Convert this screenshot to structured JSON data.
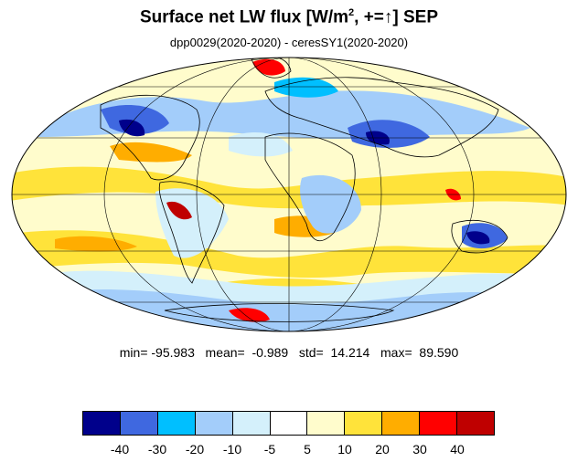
{
  "header": {
    "title_main": "Surface net LW flux [W/m",
    "title_sup": "2",
    "title_rest": ", +=↑]  SEP",
    "subtitle": "dpp0029(2020-2020) - ceresSY1(2020-2020)"
  },
  "stats": {
    "text": "min= -95.983   mean=  -0.989   std=  14.214   max=  89.590",
    "min": -95.983,
    "mean": -0.989,
    "std": 14.214,
    "max": 89.59
  },
  "legend": {
    "colors": [
      "#00008b",
      "#3f68e0",
      "#00bfff",
      "#a3cdfa",
      "#d4f0fb",
      "#ffffff",
      "#fffccc",
      "#ffe33a",
      "#ffad00",
      "#ff0000",
      "#bf0000"
    ],
    "ticks": [
      "-40",
      "-30",
      "-20",
      "-10",
      "-5",
      "5",
      "10",
      "20",
      "30",
      "40"
    ]
  },
  "map": {
    "projection": "mollweide",
    "graticule": "on"
  }
}
